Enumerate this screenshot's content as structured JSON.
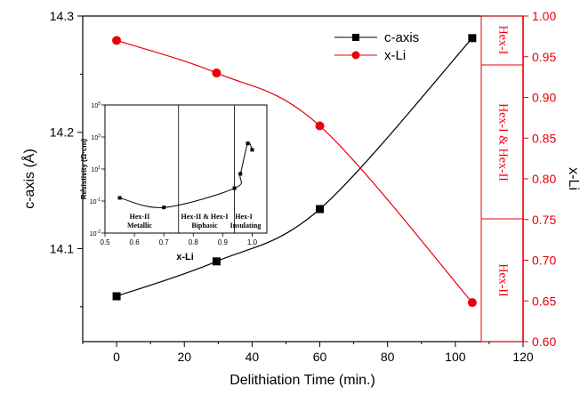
{
  "chart_data": [
    {
      "type": "line",
      "xlabel": "Delithiation Time (min.)",
      "ylabel": "c-axis (Å)",
      "y2label": "x-Li",
      "xlim": [
        -10,
        120
      ],
      "ylim": [
        14.02,
        14.3
      ],
      "y2lim": [
        0.6,
        1.0
      ],
      "xticks": [
        "0",
        "20",
        "40",
        "60",
        "80",
        "100",
        "120"
      ],
      "yticks": [
        "14.1",
        "14.2",
        "14.3"
      ],
      "y2ticks": [
        "0.60",
        "0.65",
        "0.70",
        "0.75",
        "0.80",
        "0.85",
        "0.90",
        "0.95",
        "1.00"
      ],
      "colors": {
        "c_axis": "#000000",
        "x_li": "#e8000b"
      },
      "legend_position": "top-right",
      "series": [
        {
          "name": "c-axis",
          "axis": "left",
          "marker": "square",
          "x": [
            0,
            29.5,
            60,
            105
          ],
          "y": [
            14.059,
            14.089,
            14.134,
            14.281
          ]
        },
        {
          "name": "x-Li",
          "axis": "right",
          "marker": "circle",
          "x": [
            0,
            29.5,
            60,
            105
          ],
          "y": [
            0.97,
            0.93,
            0.865,
            0.648
          ]
        }
      ],
      "phase_labels": [
        "Hex-I",
        "Hex-I & Hex-II",
        "Hex-II"
      ],
      "phase_boundaries_xli": [
        0.94,
        0.75
      ]
    },
    {
      "type": "line",
      "inset": true,
      "xlabel": "x-Li",
      "ylabel": "Resistivity (Ω·cm)",
      "y_scale": "log",
      "xlim": [
        0.5,
        1.05
      ],
      "ylim_exponent": [
        -3,
        5
      ],
      "xticks": [
        "0.5",
        "0.6",
        "0.7",
        "0.8",
        "0.9",
        "1.0"
      ],
      "yticks": [
        {
          "base": "10",
          "exp": "5"
        },
        {
          "base": "10",
          "exp": "3"
        },
        {
          "base": "10",
          "exp": "1"
        },
        {
          "base": "10",
          "exp": "-1"
        },
        {
          "base": "10",
          "exp": "-3"
        }
      ],
      "points": {
        "x": [
          0.55,
          0.7,
          0.94,
          0.96,
          0.985,
          1.0
        ],
        "y_exponent": [
          -0.8,
          -1.4,
          -0.2,
          0.7,
          2.6,
          2.2
        ]
      },
      "region_boundaries": [
        0.75,
        0.94
      ],
      "regions": [
        {
          "line1": "Hex-II",
          "line2": "Metallic"
        },
        {
          "line1": "Hex-II & Hex-I",
          "line2": "Biphasic"
        },
        {
          "line1": "Hex-I",
          "line2": "Insulating"
        }
      ]
    }
  ]
}
